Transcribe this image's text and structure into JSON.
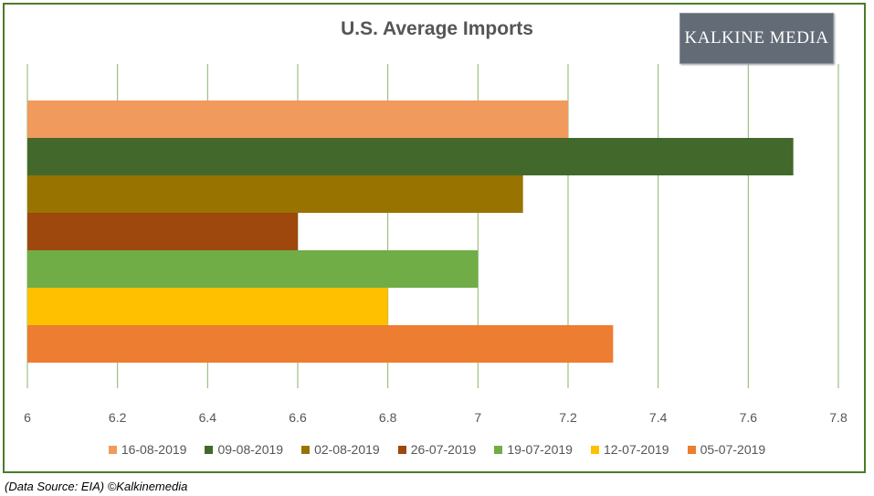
{
  "chart_data": {
    "type": "bar",
    "orientation": "horizontal",
    "title": "U.S. Average Imports",
    "xlabel": "",
    "ylabel": "",
    "xlim": [
      6,
      7.8
    ],
    "x_ticks": [
      "6",
      "6.2",
      "6.4",
      "6.6",
      "6.8",
      "7",
      "7.2",
      "7.4",
      "7.6",
      "7.8"
    ],
    "grid": "vertical",
    "legend_position": "bottom",
    "series": [
      {
        "name": "16-08-2019",
        "value": 7.2,
        "color": "#f09a5d"
      },
      {
        "name": "09-08-2019",
        "value": 7.7,
        "color": "#43682b"
      },
      {
        "name": "02-08-2019",
        "value": 7.1,
        "color": "#997300"
      },
      {
        "name": "26-07-2019",
        "value": 6.6,
        "color": "#9e480e"
      },
      {
        "name": "19-07-2019",
        "value": 7.0,
        "color": "#70ad47"
      },
      {
        "name": "12-07-2019",
        "value": 6.8,
        "color": "#ffc000"
      },
      {
        "name": "05-07-2019",
        "value": 7.3,
        "color": "#ed7d31"
      }
    ]
  },
  "logo": {
    "text": "KALKINE MEDIA"
  },
  "source_note": "(Data Source: EIA) ©Kalkinemedia",
  "colors": {
    "frame": "#4a7c2a",
    "gridline": "#8db36a",
    "logo_bg": "#636b76"
  }
}
